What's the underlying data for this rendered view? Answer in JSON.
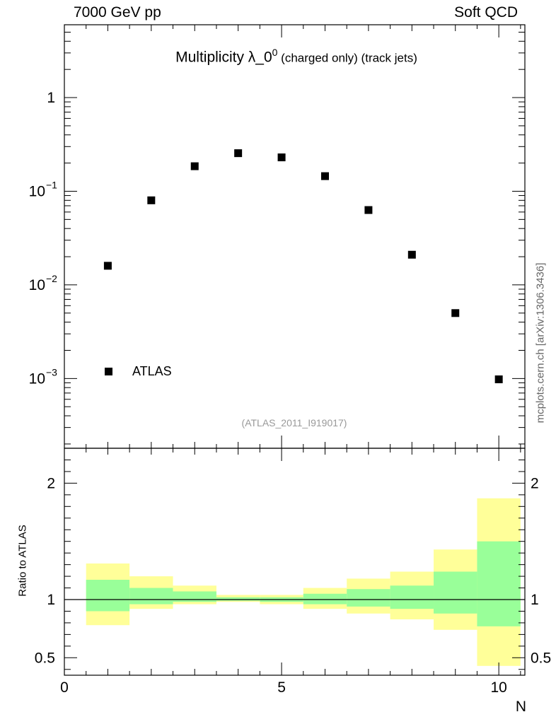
{
  "header": {
    "left": "7000 GeV pp",
    "right": "Soft QCD"
  },
  "side_label": "mcplots.cern.ch [arXiv:1306.3436]",
  "title": {
    "main": "Multiplicity λ_0",
    "superscript": "0",
    "suffix": " (charged only) (track jets)"
  },
  "legend": {
    "entries": [
      "ATLAS"
    ],
    "placement": "bottom-left"
  },
  "watermark": "(ATLAS_2011_I919017)",
  "ratio_panel": {
    "ylabel": "Ratio to ATLAS"
  },
  "xlabel": "N",
  "colors": {
    "band_inner": "#99ff99",
    "band_outer": "#ffff99",
    "marker": "#000000",
    "side_label": "#666666",
    "watermark": "#999999"
  },
  "chart_data": {
    "type": "scatter",
    "xlabel": "N",
    "ylabel": "",
    "xlim": [
      0,
      10.6
    ],
    "xticks": [
      "0",
      "5",
      "10"
    ],
    "main": {
      "yscale": "log",
      "ylim": [
        0.00018,
        6
      ],
      "yticks": [
        {
          "base": "10",
          "exp": "−3",
          "value": 0.001
        },
        {
          "base": "10",
          "exp": "−2",
          "value": 0.01
        },
        {
          "base": "10",
          "exp": "−1",
          "value": 0.1
        },
        {
          "base": "1",
          "exp": "",
          "value": 1
        }
      ],
      "series": [
        {
          "name": "ATLAS",
          "x": [
            1,
            2,
            3,
            4,
            5,
            6,
            7,
            8,
            9,
            10
          ],
          "values": [
            0.016,
            0.08,
            0.185,
            0.255,
            0.23,
            0.145,
            0.063,
            0.021,
            0.005,
            0.00098
          ]
        }
      ]
    },
    "ratio": {
      "ylim": [
        0.35,
        2.3
      ],
      "yticks": [
        "0.5",
        "1",
        "2"
      ],
      "ytick_values": [
        0.5,
        1,
        2
      ],
      "reference": 1,
      "bins": [
        {
          "lo": 0.5,
          "hi": 1.5,
          "inner": [
            0.9,
            1.17
          ],
          "outer": [
            0.78,
            1.31
          ]
        },
        {
          "lo": 1.5,
          "hi": 2.5,
          "inner": [
            0.96,
            1.1
          ],
          "outer": [
            0.92,
            1.2
          ]
        },
        {
          "lo": 2.5,
          "hi": 3.5,
          "inner": [
            0.98,
            1.07
          ],
          "outer": [
            0.96,
            1.12
          ]
        },
        {
          "lo": 3.5,
          "hi": 4.5,
          "inner": [
            0.99,
            1.02
          ],
          "outer": [
            0.98,
            1.04
          ]
        },
        {
          "lo": 4.5,
          "hi": 5.5,
          "inner": [
            0.98,
            1.02
          ],
          "outer": [
            0.96,
            1.04
          ]
        },
        {
          "lo": 5.5,
          "hi": 6.5,
          "inner": [
            0.96,
            1.05
          ],
          "outer": [
            0.92,
            1.1
          ]
        },
        {
          "lo": 6.5,
          "hi": 7.5,
          "inner": [
            0.94,
            1.09
          ],
          "outer": [
            0.88,
            1.18
          ]
        },
        {
          "lo": 7.5,
          "hi": 8.5,
          "inner": [
            0.92,
            1.12
          ],
          "outer": [
            0.83,
            1.24
          ]
        },
        {
          "lo": 8.5,
          "hi": 9.5,
          "inner": [
            0.88,
            1.24
          ],
          "outer": [
            0.74,
            1.43
          ]
        },
        {
          "lo": 9.5,
          "hi": 10.5,
          "inner": [
            0.77,
            1.5
          ],
          "outer": [
            0.43,
            1.87
          ]
        }
      ]
    }
  }
}
